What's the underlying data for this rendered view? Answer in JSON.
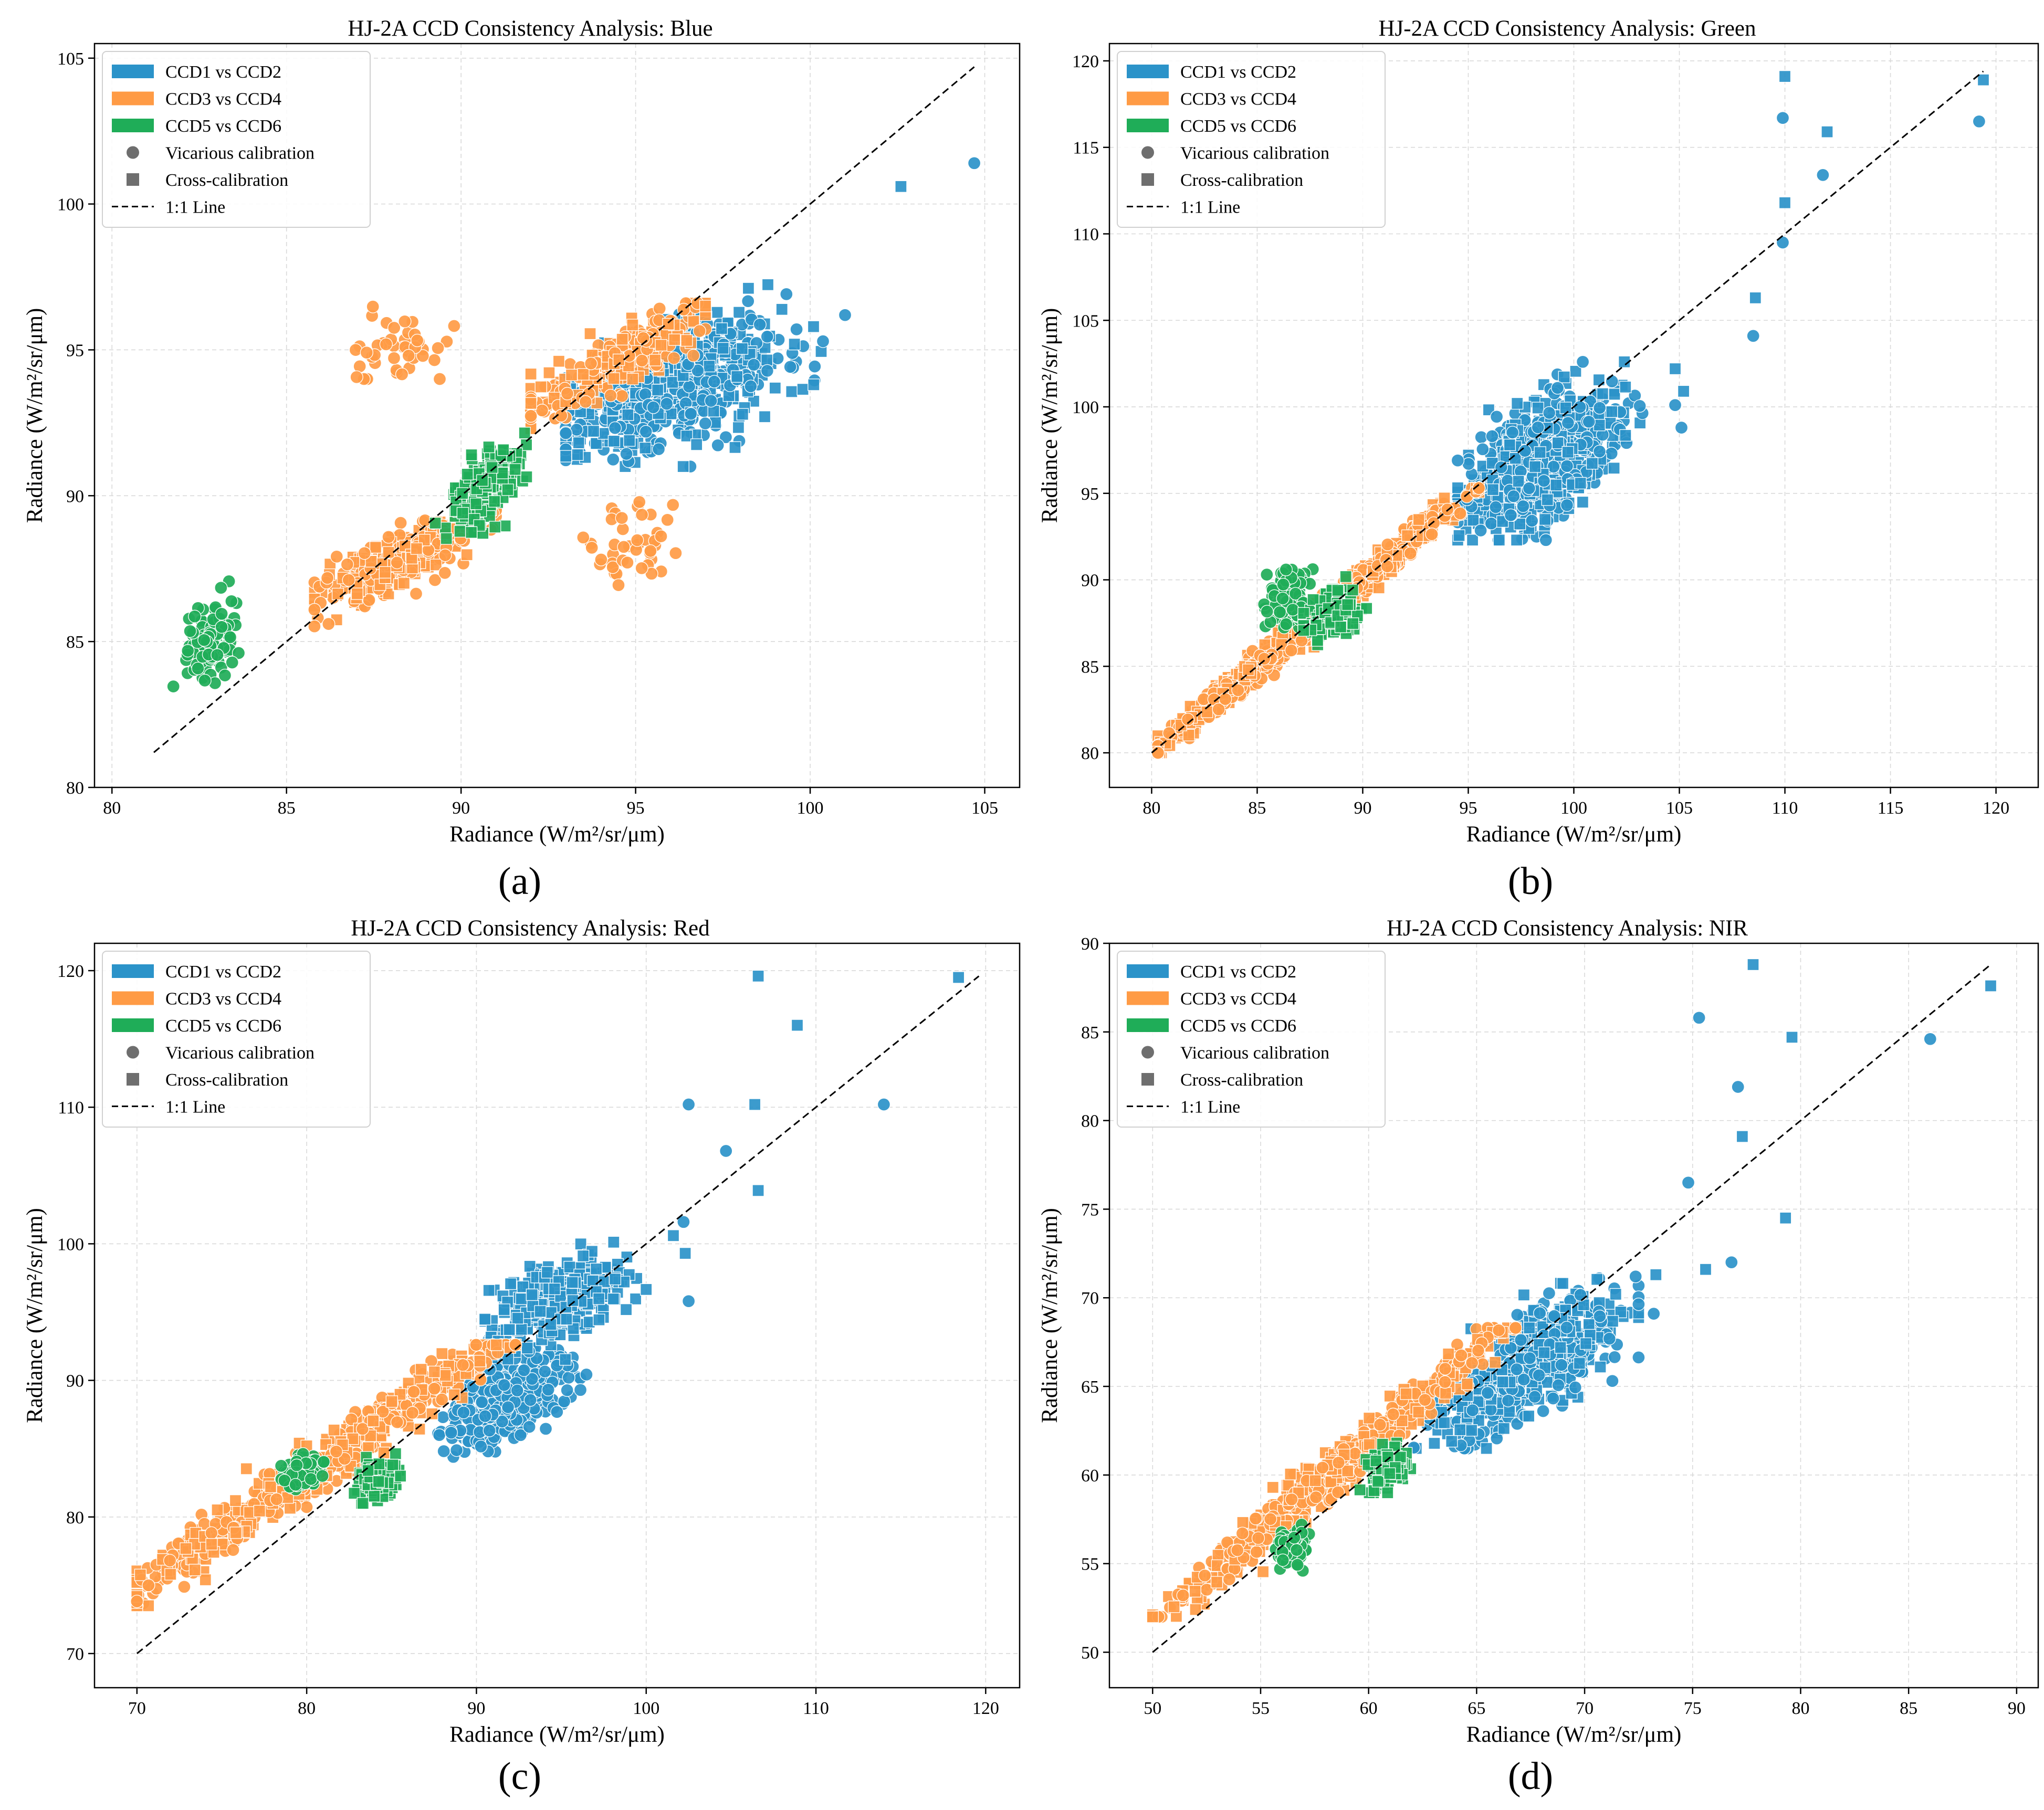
{
  "figure": {
    "legend_entries": [
      {
        "label": "CCD1 vs CCD2",
        "kind": "patch",
        "color": "#2b93c9"
      },
      {
        "label": "CCD3 vs CCD4",
        "kind": "patch",
        "color": "#ff9b45"
      },
      {
        "label": "CCD5 vs CCD6",
        "kind": "patch",
        "color": "#1fad58"
      },
      {
        "label": "Vicarious calibration",
        "kind": "circle",
        "color": "#6e6e6e"
      },
      {
        "label": "Cross-calibration",
        "kind": "square",
        "color": "#6e6e6e"
      },
      {
        "label": "1:1 Line",
        "kind": "line",
        "color": "#000000"
      }
    ],
    "colors": {
      "ccd12": "#2b93c9",
      "ccd34": "#ff9b45",
      "ccd56": "#1fad58",
      "grid": "#d9d9d9",
      "one_to_one": "#000000"
    }
  },
  "chart_data": [
    {
      "panel": "(a)",
      "type": "scatter",
      "title": "HJ-2A CCD Consistency Analysis: Blue",
      "xlabel": "Radiance (W/m²/sr/μm)",
      "ylabel": "Radiance (W/m²/sr/μm)",
      "xlim": [
        79.5,
        106
      ],
      "ylim": [
        80,
        105.5
      ],
      "xticks": [
        80,
        85,
        90,
        95,
        100,
        105
      ],
      "yticks": [
        80,
        85,
        90,
        95,
        100,
        105
      ],
      "one_to_one": [
        81.2,
        104.7
      ],
      "clusters": [
        {
          "series": "CCD1 vs CCD2",
          "method": "mixed",
          "n": 700,
          "cx": 96.0,
          "cy": 93.8,
          "sx": 1.6,
          "sy": 1.1,
          "rho": 0.55,
          "xr": [
            93,
            101
          ],
          "yr": [
            91.0,
            98.3
          ]
        },
        {
          "series": "CCD3 vs CCD4",
          "method": "mixed",
          "n": 260,
          "cx": 94.6,
          "cy": 94.7,
          "sx": 1.4,
          "sy": 1.0,
          "rho": 0.85,
          "xr": [
            92,
            97
          ],
          "yr": [
            92.3,
            96.6
          ]
        },
        {
          "series": "CCD3 vs CCD4",
          "method": "mixed",
          "n": 300,
          "cx": 88.3,
          "cy": 87.8,
          "sx": 1.1,
          "sy": 0.7,
          "rho": 0.75,
          "xr": [
            85.8,
            91
          ],
          "yr": [
            85.3,
            89.5
          ]
        },
        {
          "series": "CCD3 vs CCD4",
          "method": "vicarious",
          "n": 45,
          "cx": 88.3,
          "cy": 94.9,
          "sx": 0.7,
          "sy": 0.55,
          "rho": 0.0,
          "xr": [
            86.5,
            89.8
          ],
          "yr": [
            94.0,
            96.5
          ]
        },
        {
          "series": "CCD3 vs CCD4",
          "method": "vicarious",
          "n": 45,
          "cx": 95.0,
          "cy": 88.3,
          "sx": 0.75,
          "sy": 0.7,
          "rho": 0.0,
          "xr": [
            93,
            96.5
          ],
          "yr": [
            86.6,
            90.0
          ]
        },
        {
          "series": "CCD5 vs CCD6",
          "method": "vicarious",
          "n": 150,
          "cx": 82.8,
          "cy": 85.0,
          "sx": 0.35,
          "sy": 0.6,
          "rho": 0.3,
          "xr": [
            81.2,
            84
          ],
          "yr": [
            82.8,
            88.3
          ]
        },
        {
          "series": "CCD5 vs CCD6",
          "method": "cross",
          "n": 220,
          "cx": 90.7,
          "cy": 90.3,
          "sx": 0.45,
          "sy": 0.75,
          "rho": 0.6,
          "xr": [
            89.2,
            92.3
          ],
          "yr": [
            88.2,
            93.9
          ]
        }
      ],
      "extra_points": [
        {
          "series": "CCD1 vs CCD2",
          "method": "vicarious",
          "x": 104.7,
          "y": 101.4
        },
        {
          "series": "CCD1 vs CCD2",
          "method": "cross",
          "x": 102.6,
          "y": 100.6
        }
      ]
    },
    {
      "panel": "(b)",
      "type": "scatter",
      "title": "HJ-2A CCD Consistency Analysis: Green",
      "xlabel": "Radiance (W/m²/sr/μm)",
      "ylabel": "Radiance (W/m²/sr/μm)",
      "xlim": [
        78,
        122
      ],
      "ylim": [
        78,
        121
      ],
      "xticks": [
        80,
        85,
        90,
        95,
        100,
        105,
        110,
        115,
        120
      ],
      "yticks": [
        80,
        85,
        90,
        95,
        100,
        105,
        110,
        115,
        120
      ],
      "one_to_one": [
        80,
        119.4
      ],
      "clusters": [
        {
          "series": "CCD1 vs CCD2",
          "method": "mixed",
          "n": 850,
          "cx": 98.5,
          "cy": 97.0,
          "sx": 1.7,
          "sy": 1.9,
          "rho": 0.55,
          "xr": [
            94.5,
            103.5
          ],
          "yr": [
            92.3,
            102.6
          ]
        },
        {
          "series": "CCD3 vs CCD4",
          "method": "mixed",
          "n": 900,
          "cx": 87.0,
          "cy": 87.0,
          "sx": 4.2,
          "sy": 4.2,
          "rho": 0.995,
          "xr": [
            80.3,
            95.5
          ],
          "yr": [
            80.0,
            95.3
          ]
        },
        {
          "series": "CCD5 vs CCD6",
          "method": "vicarious",
          "n": 110,
          "cx": 86.5,
          "cy": 89.0,
          "sx": 0.5,
          "sy": 0.8,
          "rho": 0.2,
          "xr": [
            85.3,
            87.8
          ],
          "yr": [
            86.8,
            93.0
          ]
        },
        {
          "series": "CCD5 vs CCD6",
          "method": "cross",
          "n": 130,
          "cx": 88.5,
          "cy": 88.0,
          "sx": 0.6,
          "sy": 0.8,
          "rho": 0.3,
          "xr": [
            87.2,
            90.3
          ],
          "yr": [
            86.0,
            92.2
          ]
        }
      ],
      "extra_points": [
        {
          "series": "CCD1 vs CCD2",
          "method": "vicarious",
          "x": 104.8,
          "y": 100.1
        },
        {
          "series": "CCD1 vs CCD2",
          "method": "vicarious",
          "x": 105.1,
          "y": 98.8
        },
        {
          "series": "CCD1 vs CCD2",
          "method": "cross",
          "x": 104.8,
          "y": 102.2
        },
        {
          "series": "CCD1 vs CCD2",
          "method": "cross",
          "x": 105.2,
          "y": 100.9
        },
        {
          "series": "CCD1 vs CCD2",
          "method": "vicarious",
          "x": 108.5,
          "y": 104.1
        },
        {
          "series": "CCD1 vs CCD2",
          "method": "cross",
          "x": 108.6,
          "y": 106.3
        },
        {
          "series": "CCD1 vs CCD2",
          "method": "vicarious",
          "x": 109.9,
          "y": 109.5
        },
        {
          "series": "CCD1 vs CCD2",
          "method": "cross",
          "x": 110.0,
          "y": 111.8
        },
        {
          "series": "CCD1 vs CCD2",
          "method": "vicarious",
          "x": 109.9,
          "y": 116.7
        },
        {
          "series": "CCD1 vs CCD2",
          "method": "cross",
          "x": 110.0,
          "y": 119.1
        },
        {
          "series": "CCD1 vs CCD2",
          "method": "vicarious",
          "x": 111.8,
          "y": 113.4
        },
        {
          "series": "CCD1 vs CCD2",
          "method": "cross",
          "x": 112.0,
          "y": 115.9
        },
        {
          "series": "CCD1 vs CCD2",
          "method": "vicarious",
          "x": 119.2,
          "y": 116.5
        },
        {
          "series": "CCD1 vs CCD2",
          "method": "cross",
          "x": 119.4,
          "y": 118.9
        }
      ]
    },
    {
      "panel": "(c)",
      "type": "scatter",
      "title": "HJ-2A CCD Consistency Analysis: Red",
      "xlabel": "Radiance (W/m²/sr/μm)",
      "ylabel": "Radiance (W/m²/sr/μm)",
      "xlim": [
        67.5,
        122
      ],
      "ylim": [
        67.5,
        122
      ],
      "xticks": [
        70,
        80,
        90,
        100,
        110,
        120
      ],
      "yticks": [
        70,
        80,
        90,
        100,
        110,
        120
      ],
      "one_to_one": [
        70,
        119.6
      ],
      "clusters": [
        {
          "series": "CCD1 vs CCD2",
          "method": "vicarious",
          "n": 380,
          "cx": 91.5,
          "cy": 88.5,
          "sx": 1.7,
          "sy": 1.6,
          "rho": 0.45,
          "xr": [
            87.5,
            98
          ],
          "yr": [
            84.0,
            93.0
          ]
        },
        {
          "series": "CCD1 vs CCD2",
          "method": "cross",
          "n": 380,
          "cx": 94.8,
          "cy": 95.8,
          "sx": 2.0,
          "sy": 1.6,
          "rho": 0.5,
          "xr": [
            90.5,
            100
          ],
          "yr": [
            91.0,
            100.6
          ]
        },
        {
          "series": "CCD3 vs CCD4",
          "method": "mixed",
          "n": 650,
          "cx": 80.5,
          "cy": 83.5,
          "sx": 6.0,
          "sy": 5.2,
          "rho": 0.985,
          "xr": [
            70.0,
            92.3
          ],
          "yr": [
            73.5,
            92.6
          ]
        },
        {
          "series": "CCD5 vs CCD6",
          "method": "vicarious",
          "n": 90,
          "cx": 79.8,
          "cy": 83.3,
          "sx": 0.55,
          "sy": 0.6,
          "rho": 0.3,
          "xr": [
            78.5,
            81.0
          ],
          "yr": [
            82.0,
            86.8
          ]
        },
        {
          "series": "CCD5 vs CCD6",
          "method": "cross",
          "n": 170,
          "cx": 84.2,
          "cy": 82.6,
          "sx": 0.55,
          "sy": 0.6,
          "rho": 0.2,
          "xr": [
            82.8,
            85.8
          ],
          "yr": [
            81.0,
            87.0
          ]
        }
      ],
      "extra_points": [
        {
          "series": "CCD1 vs CCD2",
          "method": "cross",
          "x": 101.6,
          "y": 100.6
        },
        {
          "series": "CCD1 vs CCD2",
          "method": "vicarious",
          "x": 102.2,
          "y": 101.6
        },
        {
          "series": "CCD1 vs CCD2",
          "method": "cross",
          "x": 102.3,
          "y": 99.3
        },
        {
          "series": "CCD1 vs CCD2",
          "method": "vicarious",
          "x": 102.5,
          "y": 95.8
        },
        {
          "series": "CCD1 vs CCD2",
          "method": "vicarious",
          "x": 102.5,
          "y": 110.2
        },
        {
          "series": "CCD1 vs CCD2",
          "method": "vicarious",
          "x": 104.7,
          "y": 106.8
        },
        {
          "series": "CCD1 vs CCD2",
          "method": "cross",
          "x": 106.4,
          "y": 110.2
        },
        {
          "series": "CCD1 vs CCD2",
          "method": "cross",
          "x": 106.6,
          "y": 103.9
        },
        {
          "series": "CCD1 vs CCD2",
          "method": "cross",
          "x": 106.6,
          "y": 119.6
        },
        {
          "series": "CCD1 vs CCD2",
          "method": "cross",
          "x": 108.9,
          "y": 116.0
        },
        {
          "series": "CCD1 vs CCD2",
          "method": "vicarious",
          "x": 114.0,
          "y": 110.2
        },
        {
          "series": "CCD1 vs CCD2",
          "method": "cross",
          "x": 118.4,
          "y": 119.5
        }
      ]
    },
    {
      "panel": "(d)",
      "type": "scatter",
      "title": "HJ-2A CCD Consistency Analysis: NIR",
      "xlabel": "Radiance (W/m²/sr/μm)",
      "ylabel": "Radiance (W/m²/sr/μm)",
      "xlim": [
        48,
        91
      ],
      "ylim": [
        48,
        90
      ],
      "xticks": [
        50,
        55,
        60,
        65,
        70,
        75,
        80,
        85,
        90
      ],
      "yticks": [
        50,
        55,
        60,
        65,
        70,
        75,
        80,
        85,
        90
      ],
      "one_to_one": [
        50,
        88.8
      ],
      "clusters": [
        {
          "series": "CCD1 vs CCD2",
          "method": "mixed",
          "n": 650,
          "cx": 67.5,
          "cy": 66.3,
          "sx": 2.1,
          "sy": 2.0,
          "rho": 0.7,
          "xr": [
            61.5,
            72.5
          ],
          "yr": [
            61.5,
            71.2
          ]
        },
        {
          "series": "CCD3 vs CCD4",
          "method": "mixed",
          "n": 650,
          "cx": 58.5,
          "cy": 60.3,
          "sx": 4.2,
          "sy": 4.3,
          "rho": 0.99,
          "xr": [
            50.0,
            66.8
          ],
          "yr": [
            52.0,
            68.3
          ]
        },
        {
          "series": "CCD5 vs CCD6",
          "method": "vicarious",
          "n": 110,
          "cx": 56.5,
          "cy": 55.8,
          "sx": 0.35,
          "sy": 0.45,
          "rho": 0.2,
          "xr": [
            55.7,
            57.6
          ],
          "yr": [
            54.6,
            57.2
          ]
        },
        {
          "series": "CCD5 vs CCD6",
          "method": "cross",
          "n": 150,
          "cx": 60.8,
          "cy": 60.5,
          "sx": 0.45,
          "sy": 0.55,
          "rho": 0.3,
          "xr": [
            59.6,
            62.0
          ],
          "yr": [
            59.0,
            63.3
          ]
        }
      ],
      "extra_points": [
        {
          "series": "CCD1 vs CCD2",
          "method": "vicarious",
          "x": 73.2,
          "y": 69.1
        },
        {
          "series": "CCD1 vs CCD2",
          "method": "cross",
          "x": 73.3,
          "y": 71.3
        },
        {
          "series": "CCD1 vs CCD2",
          "method": "vicarious",
          "x": 74.8,
          "y": 76.5
        },
        {
          "series": "CCD1 vs CCD2",
          "method": "vicarious",
          "x": 75.3,
          "y": 85.8
        },
        {
          "series": "CCD1 vs CCD2",
          "method": "cross",
          "x": 75.6,
          "y": 71.6
        },
        {
          "series": "CCD1 vs CCD2",
          "method": "vicarious",
          "x": 76.8,
          "y": 72.0
        },
        {
          "series": "CCD1 vs CCD2",
          "method": "vicarious",
          "x": 77.1,
          "y": 81.9
        },
        {
          "series": "CCD1 vs CCD2",
          "method": "cross",
          "x": 77.3,
          "y": 79.1
        },
        {
          "series": "CCD1 vs CCD2",
          "method": "cross",
          "x": 77.8,
          "y": 88.8
        },
        {
          "series": "CCD1 vs CCD2",
          "method": "cross",
          "x": 79.3,
          "y": 74.5
        },
        {
          "series": "CCD1 vs CCD2",
          "method": "cross",
          "x": 79.6,
          "y": 84.7
        },
        {
          "series": "CCD1 vs CCD2",
          "method": "vicarious",
          "x": 86.0,
          "y": 84.6
        },
        {
          "series": "CCD1 vs CCD2",
          "method": "cross",
          "x": 88.8,
          "y": 87.6
        }
      ]
    }
  ]
}
